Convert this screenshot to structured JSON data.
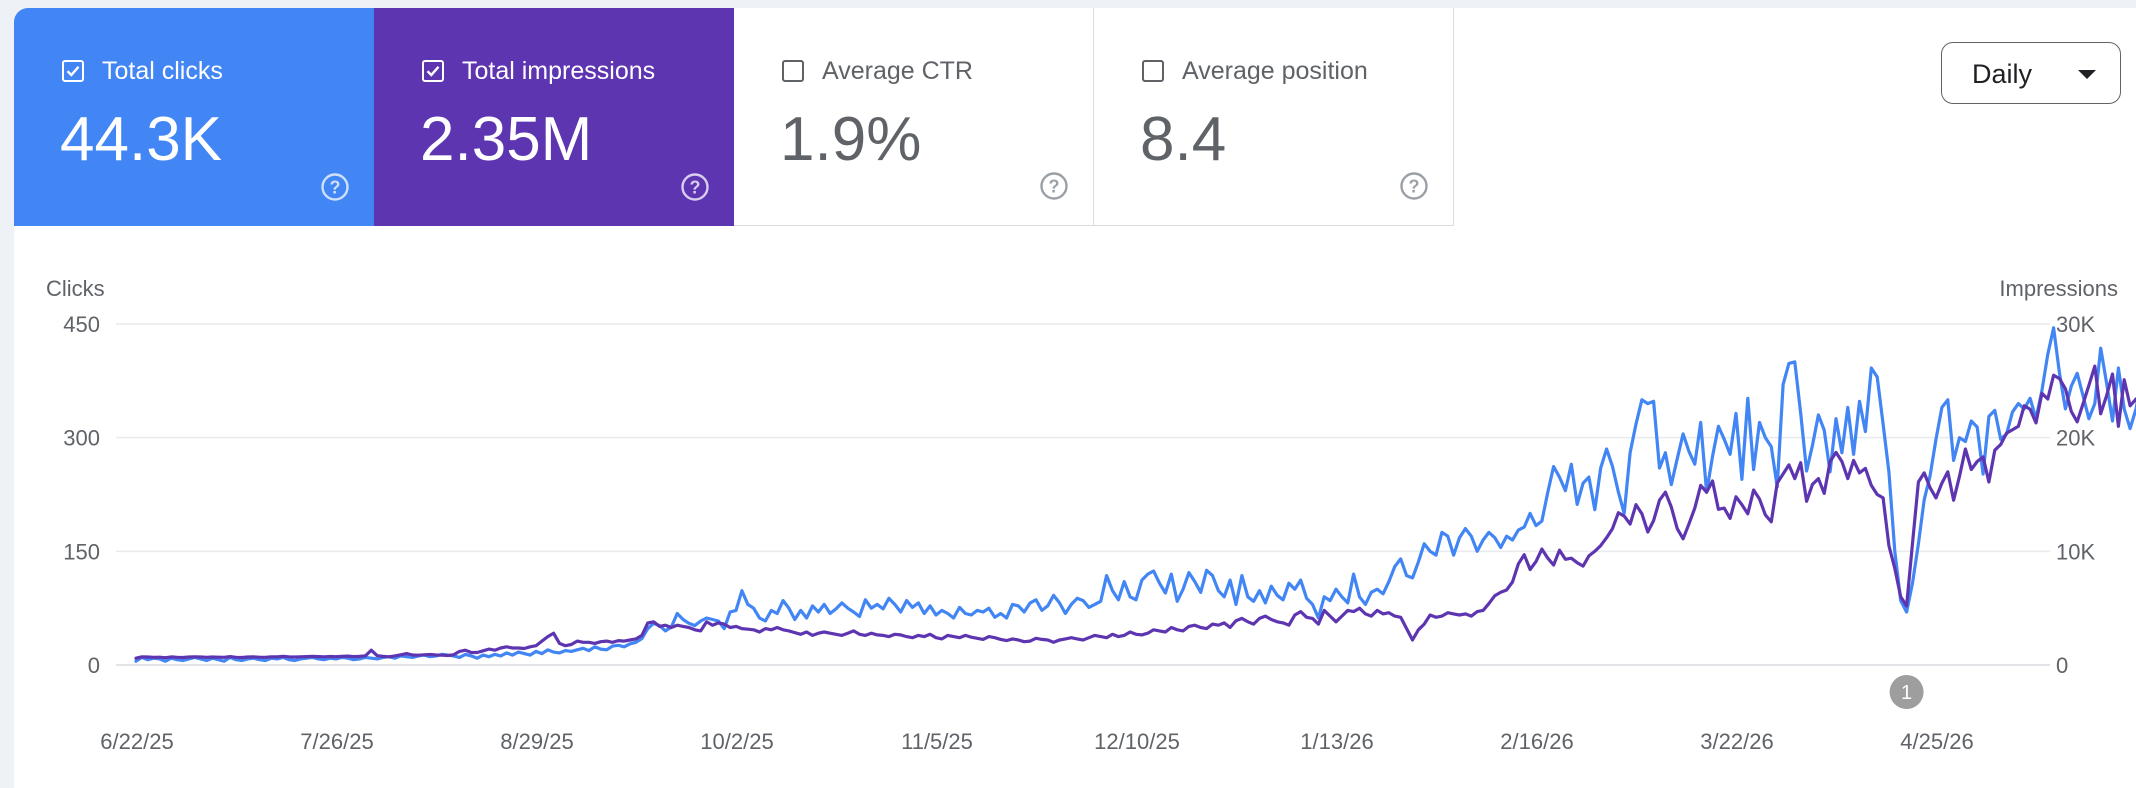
{
  "metrics": [
    {
      "label": "Total clicks",
      "value": "44.3K",
      "checked": true,
      "color": "#4285f4"
    },
    {
      "label": "Total impressions",
      "value": "2.35M",
      "checked": true,
      "color": "#5e35b1"
    },
    {
      "label": "Average CTR",
      "value": "1.9%",
      "checked": false,
      "color": "#ffffff"
    },
    {
      "label": "Average position",
      "value": "8.4",
      "checked": false,
      "color": "#ffffff"
    }
  ],
  "granularity": {
    "label": "Daily"
  },
  "annotation": {
    "label": "1",
    "date": "4/19/26"
  },
  "chart_data": {
    "type": "line",
    "x_start": "6/22/25",
    "x_end": "5/10/26",
    "xticks": [
      "6/22/25",
      "7/26/25",
      "8/29/25",
      "10/2/25",
      "11/5/25",
      "12/10/25",
      "1/13/26",
      "2/16/26",
      "3/22/26",
      "4/25/26"
    ],
    "y_left": {
      "label": "Clicks",
      "ticks": [
        "0",
        "150",
        "300",
        "450"
      ],
      "ylim": [
        0,
        450
      ]
    },
    "y_right": {
      "label": "Impressions",
      "ticks": [
        "0",
        "10K",
        "20K",
        "30K"
      ],
      "ylim": [
        0,
        30000
      ]
    },
    "grid": true,
    "series": [
      {
        "name": "Total clicks",
        "axis": "left",
        "color": "#4285f4",
        "values": [
          5,
          10,
          7,
          9,
          8,
          5,
          9,
          7,
          6,
          8,
          10,
          8,
          6,
          9,
          7,
          5,
          10,
          7,
          6,
          8,
          9,
          7,
          6,
          9,
          8,
          10,
          7,
          6,
          8,
          9,
          10,
          8,
          7,
          9,
          8,
          10,
          9,
          7,
          8,
          10,
          9,
          8,
          10,
          11,
          9,
          12,
          11,
          10,
          12,
          13,
          11,
          12,
          14,
          13,
          12,
          10,
          14,
          12,
          9,
          13,
          11,
          14,
          12,
          16,
          13,
          17,
          15,
          13,
          18,
          15,
          20,
          17,
          16,
          19,
          18,
          20,
          22,
          19,
          24,
          21,
          20,
          25,
          26,
          24,
          28,
          30,
          35,
          48,
          55,
          52,
          45,
          50,
          68,
          60,
          55,
          52,
          58,
          62,
          60,
          58,
          48,
          70,
          72,
          98,
          80,
          75,
          62,
          58,
          72,
          68,
          85,
          75,
          60,
          72,
          62,
          78,
          70,
          80,
          68,
          74,
          82,
          75,
          70,
          64,
          86,
          75,
          80,
          74,
          88,
          80,
          70,
          85,
          76,
          82,
          68,
          78,
          66,
          72,
          68,
          62,
          76,
          68,
          66,
          72,
          70,
          75,
          63,
          68,
          62,
          80,
          78,
          70,
          82,
          86,
          72,
          78,
          92,
          82,
          68,
          80,
          88,
          85,
          76,
          80,
          84,
          118,
          98,
          86,
          110,
          90,
          86,
          112,
          120,
          124,
          108,
          95,
          120,
          84,
          100,
          122,
          110,
          96,
          125,
          118,
          98,
          90,
          112,
          80,
          118,
          90,
          84,
          98,
          82,
          104,
          92,
          86,
          108,
          100,
          112,
          88,
          80,
          62,
          90,
          85,
          100,
          90,
          82,
          120,
          90,
          80,
          96,
          100,
          94,
          110,
          130,
          140,
          118,
          115,
          136,
          160,
          150,
          145,
          175,
          170,
          145,
          168,
          180,
          170,
          150,
          165,
          175,
          168,
          155,
          170,
          165,
          178,
          182,
          200,
          184,
          190,
          228,
          262,
          248,
          230,
          265,
          212,
          240,
          248,
          205,
          260,
          285,
          262,
          228,
          200,
          280,
          318,
          350,
          345,
          348,
          260,
          280,
          238,
          272,
          305,
          282,
          265,
          320,
          228,
          275,
          315,
          298,
          278,
          332,
          245,
          352,
          258,
          320,
          300,
          288,
          235,
          370,
          398,
          400,
          332,
          256,
          290,
          330,
          310,
          255,
          325,
          280,
          340,
          278,
          348,
          308,
          392,
          380,
          318,
          255,
          150,
          85,
          70,
          108,
          160,
          218,
          250,
          298,
          340,
          350,
          270,
          300,
          295,
          322,
          314,
          252,
          328,
          336,
          298,
          305,
          334,
          345,
          338,
          352,
          325,
          362,
          410,
          445,
          385,
          338,
          368,
          385,
          355,
          325,
          345,
          418,
          372,
          322,
          392,
          338,
          312,
          338,
          378,
          352,
          330,
          305,
          342,
          362,
          338,
          385,
          400,
          372,
          335,
          290,
          300,
          312,
          314
        ]
      },
      {
        "name": "Total impressions",
        "axis": "right",
        "color": "#5e35b1",
        "values": [
          600,
          720,
          700,
          680,
          690,
          640,
          710,
          680,
          660,
          700,
          720,
          700,
          680,
          700,
          690,
          680,
          740,
          680,
          660,
          700,
          710,
          690,
          680,
          720,
          710,
          760,
          720,
          700,
          720,
          740,
          760,
          740,
          720,
          750,
          730,
          760,
          780,
          740,
          760,
          800,
          1300,
          820,
          760,
          720,
          800,
          900,
          1000,
          880,
          860,
          900,
          920,
          880,
          860,
          840,
          900,
          1200,
          1300,
          1100,
          1100,
          1250,
          1400,
          1300,
          1500,
          1600,
          1500,
          1500,
          1450,
          1600,
          1700,
          2100,
          2500,
          2800,
          1900,
          1700,
          1800,
          2100,
          2000,
          2000,
          1900,
          2050,
          2100,
          2000,
          2150,
          2100,
          2200,
          2300,
          2600,
          3700,
          3800,
          3400,
          3500,
          3300,
          3500,
          3400,
          3300,
          3100,
          3000,
          3800,
          3500,
          3700,
          3600,
          3300,
          3400,
          3200,
          3150,
          3100,
          2900,
          3200,
          3100,
          3300,
          3100,
          3000,
          2850,
          2700,
          2900,
          2600,
          2800,
          2900,
          2800,
          2700,
          2600,
          2800,
          3000,
          2700,
          2600,
          2800,
          2650,
          2600,
          2500,
          2700,
          2650,
          2500,
          2400,
          2600,
          2500,
          2700,
          2400,
          2300,
          2600,
          2500,
          2400,
          2600,
          2450,
          2350,
          2250,
          2500,
          2400,
          2250,
          2150,
          2300,
          2200,
          2050,
          2100,
          2350,
          2250,
          2200,
          2000,
          2200,
          2300,
          2400,
          2300,
          2200,
          2400,
          2600,
          2500,
          2400,
          2700,
          2500,
          2600,
          2900,
          2700,
          2650,
          2800,
          3100,
          3000,
          2900,
          3300,
          3100,
          3000,
          3400,
          3500,
          3300,
          3200,
          3600,
          3500,
          3700,
          3300,
          3900,
          4100,
          3800,
          3600,
          4100,
          4300,
          4000,
          3800,
          3700,
          3500,
          4400,
          4700,
          4200,
          4100,
          3600,
          4800,
          4300,
          3800,
          4300,
          4800,
          4700,
          5000,
          4500,
          4300,
          4800,
          4500,
          4600,
          4300,
          4200,
          3200,
          2200,
          3100,
          3600,
          4400,
          4200,
          4300,
          4600,
          4500,
          4400,
          4500,
          4300,
          4700,
          4800,
          5400,
          6100,
          6400,
          6600,
          7300,
          8900,
          9700,
          8400,
          9100,
          10200,
          9400,
          8800,
          10100,
          9300,
          9400,
          9000,
          8700,
          9600,
          10000,
          10500,
          11200,
          12000,
          13400,
          13100,
          12400,
          14100,
          13300,
          11700,
          12700,
          14500,
          15200,
          13900,
          12000,
          11100,
          12400,
          13800,
          15800,
          15200,
          16200,
          13700,
          13800,
          12900,
          14800,
          14100,
          13300,
          15400,
          14600,
          13200,
          12600,
          16000,
          16800,
          17600,
          16400,
          17800,
          14400,
          15900,
          16400,
          15100,
          17900,
          18700,
          17900,
          16400,
          18000,
          16900,
          17300,
          15800,
          15000,
          14700,
          10500,
          8500,
          6000,
          5200,
          10700,
          16100,
          16900,
          15600,
          14700,
          16000,
          17000,
          14500,
          16600,
          19000,
          17200,
          17900,
          18300,
          16100,
          18900,
          19400,
          20400,
          20700,
          21000,
          22800,
          22500,
          21300,
          23900,
          23400,
          25500,
          25200,
          24300,
          22300,
          21400,
          23000,
          24600,
          26300,
          22100,
          23700,
          25600,
          21000,
          25100,
          22800,
          23400,
          22300,
          21700,
          25800,
          23800,
          23000,
          22400,
          21100,
          25900,
          26000,
          25400,
          23600,
          20400,
          21000
        ]
      }
    ]
  }
}
